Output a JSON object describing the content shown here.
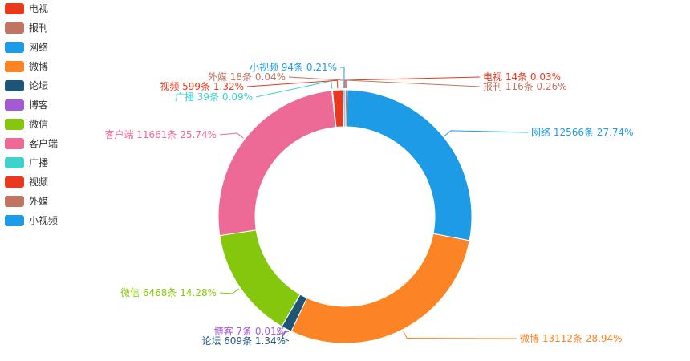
{
  "chart_data": {
    "type": "pie",
    "variant": "donut",
    "unit": "条",
    "legend_position": "left",
    "slices": [
      {
        "name": "电视",
        "value": 14,
        "percent": "0.03%",
        "color": "#e9381d"
      },
      {
        "name": "报刊",
        "value": 116,
        "percent": "0.26%",
        "color": "#c07563"
      },
      {
        "name": "网络",
        "value": 12566,
        "percent": "27.74%",
        "color": "#1e9be7"
      },
      {
        "name": "微博",
        "value": 13112,
        "percent": "28.94%",
        "color": "#fd8424"
      },
      {
        "name": "论坛",
        "value": 609,
        "percent": "1.34%",
        "color": "#1d5578"
      },
      {
        "name": "博客",
        "value": 7,
        "percent": "0.01%",
        "color": "#a25bd2"
      },
      {
        "name": "微信",
        "value": 6468,
        "percent": "14.28%",
        "color": "#84c70c"
      },
      {
        "name": "客户端",
        "value": 11661,
        "percent": "25.74%",
        "color": "#ee6a96"
      },
      {
        "name": "广播",
        "value": 39,
        "percent": "0.09%",
        "color": "#3fd1cc"
      },
      {
        "name": "视频",
        "value": 599,
        "percent": "1.32%",
        "color": "#e9381d"
      },
      {
        "name": "外媒",
        "value": 18,
        "percent": "0.04%",
        "color": "#c07563"
      },
      {
        "name": "小视频",
        "value": 94,
        "percent": "0.21%",
        "color": "#1e9be7"
      }
    ]
  }
}
